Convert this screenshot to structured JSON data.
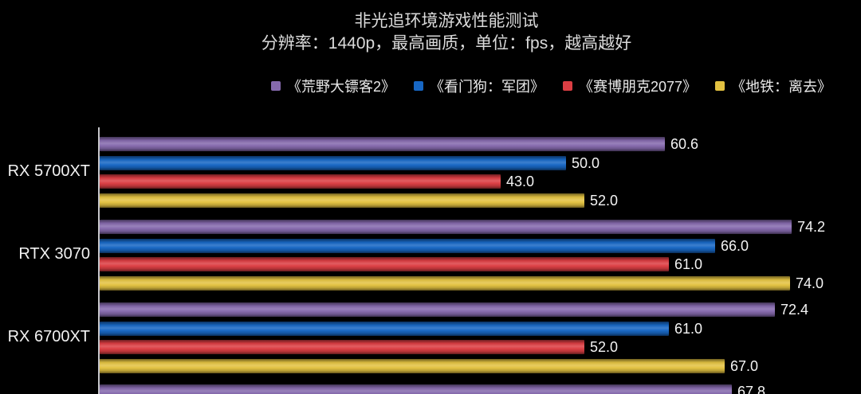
{
  "chart_data": {
    "type": "bar",
    "orientation": "horizontal",
    "title": "非光追环境游戏性能测试",
    "subtitle": "分辨率：1440p，最高画质，单位：fps，越高越好",
    "unit": "fps",
    "grid": false,
    "legend_position": "top",
    "value_label_decimals": 1,
    "xlim": [
      0,
      81.6
    ],
    "categories": [
      "RX 5700XT",
      "RTX 3070",
      "RX 6700XT",
      ""
    ],
    "series": [
      {
        "name": "《荒野大镖客2》",
        "color": "#8569AD",
        "values": [
          60.6,
          74.2,
          72.4,
          67.8
        ]
      },
      {
        "name": "《看门狗：军团》",
        "color": "#1767C4",
        "values": [
          50.0,
          66.0,
          61.0,
          null
        ]
      },
      {
        "name": "《赛博朋克2077》",
        "color": "#DC3E43",
        "values": [
          43.0,
          61.0,
          52.0,
          null
        ]
      },
      {
        "name": "《地铁：离去》",
        "color": "#E3C241",
        "values": [
          52.0,
          74.0,
          67.0,
          null
        ]
      }
    ],
    "colors": {
      "background": "#000000",
      "axis_line": "#C6C6CA",
      "text": "#EAEAEA"
    }
  }
}
